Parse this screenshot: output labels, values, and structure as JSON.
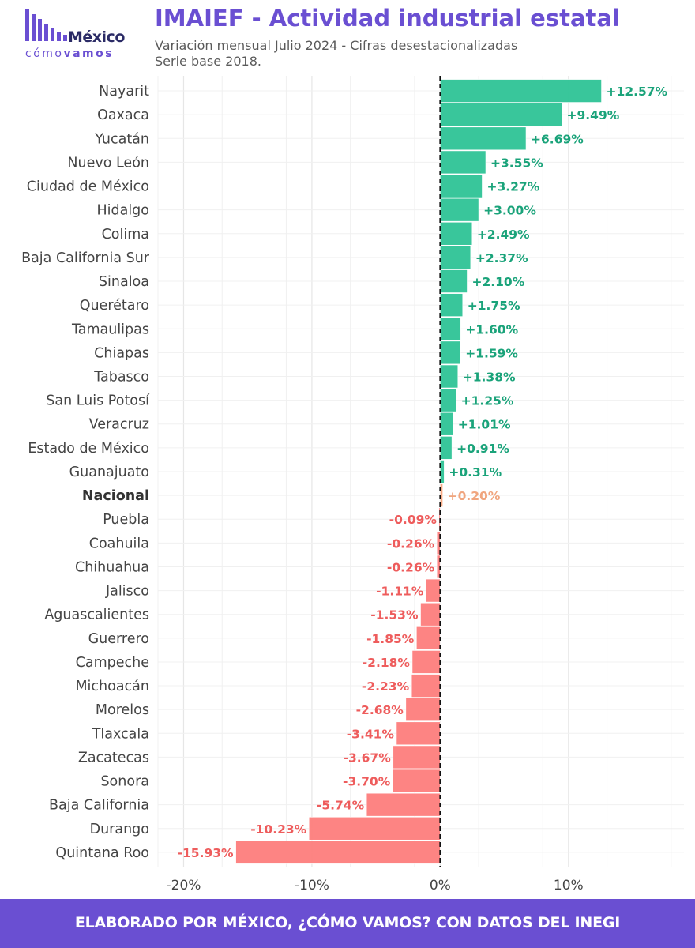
{
  "brand": {
    "logo_word": "México",
    "logo_sub_light": "cómo",
    "logo_sub_bold": "vamos",
    "accent_color": "#6a4fd2"
  },
  "header": {
    "title": "IMAIEF - Actividad industrial estatal",
    "subtitle_line1": "Variación mensual Julio 2024 - Cifras desestacionalizadas",
    "subtitle_line2": "Serie base 2018."
  },
  "footer": {
    "text": "ELABORADO POR MÉXICO, ¿CÓMO VAMOS? CON DATOS DEL INEGI"
  },
  "chart_data": {
    "type": "bar",
    "orientation": "horizontal",
    "xlim": [
      -22,
      19
    ],
    "xticks": [
      -20,
      -10,
      0,
      10
    ],
    "xtick_labels": [
      "-20%",
      "-10%",
      "0%",
      "10%"
    ],
    "grid": true,
    "zero_line": "dashed",
    "colors": {
      "positive": "#2ec396",
      "negative": "#fd7d7c",
      "national": "#f5a27a",
      "positive_label": "#1aa37a",
      "negative_label": "#ee5c5c",
      "national_label": "#f0a57e"
    },
    "highlight": "Nacional",
    "categories": [
      "Nayarit",
      "Oaxaca",
      "Yucatán",
      "Nuevo León",
      "Ciudad de México",
      "Hidalgo",
      "Colima",
      "Baja California Sur",
      "Sinaloa",
      "Querétaro",
      "Tamaulipas",
      "Chiapas",
      "Tabasco",
      "San Luis Potosí",
      "Veracruz",
      "Estado de México",
      "Guanajuato",
      "Nacional",
      "Puebla",
      "Coahuila",
      "Chihuahua",
      "Jalisco",
      "Aguascalientes",
      "Guerrero",
      "Campeche",
      "Michoacán",
      "Morelos",
      "Tlaxcala",
      "Zacatecas",
      "Sonora",
      "Baja California",
      "Durango",
      "Quintana Roo"
    ],
    "values": [
      12.57,
      9.49,
      6.69,
      3.55,
      3.27,
      3.0,
      2.49,
      2.37,
      2.1,
      1.75,
      1.6,
      1.59,
      1.38,
      1.25,
      1.01,
      0.91,
      0.31,
      0.2,
      -0.09,
      -0.26,
      -0.26,
      -1.11,
      -1.53,
      -1.85,
      -2.18,
      -2.23,
      -2.68,
      -3.41,
      -3.67,
      -3.7,
      -5.74,
      -10.23,
      -15.93
    ],
    "labels": [
      "+12.57%",
      "+9.49%",
      "+6.69%",
      "+3.55%",
      "+3.27%",
      "+3.00%",
      "+2.49%",
      "+2.37%",
      "+2.10%",
      "+1.75%",
      "+1.60%",
      "+1.59%",
      "+1.38%",
      "+1.25%",
      "+1.01%",
      "+0.91%",
      "+0.31%",
      "+0.20%",
      "-0.09%",
      "-0.26%",
      "-0.26%",
      "-1.11%",
      "-1.53%",
      "-1.85%",
      "-2.18%",
      "-2.23%",
      "-2.68%",
      "-3.41%",
      "-3.67%",
      "-3.70%",
      "-5.74%",
      "-10.23%",
      "-15.93%"
    ]
  }
}
